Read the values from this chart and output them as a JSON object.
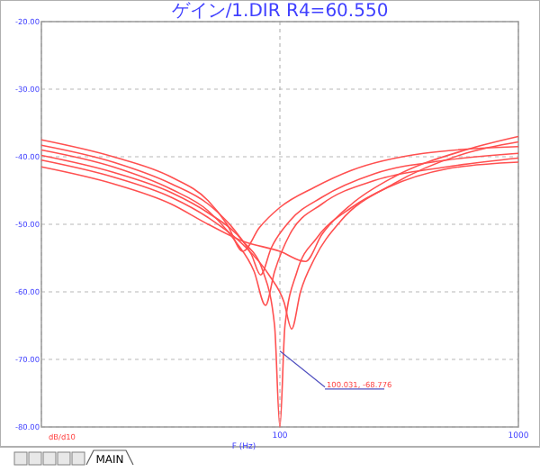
{
  "chart_data": {
    "type": "line",
    "title": "ゲイン/1.DIR R4=60.550",
    "xlabel": "F (Hz)",
    "log": "x",
    "xlim": [
      10,
      1000
    ],
    "xticks": [
      {
        "value": 10,
        "label": null
      },
      100,
      1000
    ],
    "ylim": [
      -80,
      -20
    ],
    "yticks": [
      {
        "value": -80,
        "label": "-80.00"
      },
      {
        "value": -70,
        "label": "-70.00"
      },
      {
        "value": -60,
        "label": "-60.00"
      },
      {
        "value": -50,
        "label": "-50.00"
      },
      {
        "value": -40,
        "label": "-40.00"
      },
      {
        "value": -30,
        "label": "-30.00"
      },
      {
        "value": -20,
        "label": "-20.00"
      }
    ],
    "grid": true,
    "marker": "none",
    "line_style": "solid",
    "series": [
      {
        "color": "#ff5050",
        "x": [
          10,
          20,
          35,
          50,
          60,
          70,
          82,
          100,
          140,
          200,
          400,
          1000
        ],
        "values": [
          -37.5,
          -40,
          -43,
          -46.5,
          -50,
          -54,
          -50.5,
          -47.5,
          -44.5,
          -42,
          -39.5,
          -38.5
        ]
      },
      {
        "color": "#ff5050",
        "x": [
          10,
          20,
          35,
          50,
          65,
          76,
          83,
          92,
          110,
          150,
          250,
          500,
          1000
        ],
        "values": [
          -38.3,
          -40.8,
          -44,
          -47,
          -51,
          -54.5,
          -57.5,
          -53.5,
          -49.5,
          -46,
          -42.5,
          -40.5,
          -39.5
        ]
      },
      {
        "color": "#ff5050",
        "x": [
          10,
          20,
          35,
          50,
          65,
          78,
          87,
          95,
          110,
          150,
          250,
          500,
          1000
        ],
        "values": [
          -39,
          -41.5,
          -44.8,
          -48,
          -52.5,
          -57,
          -62,
          -57,
          -51.5,
          -47,
          -43.5,
          -41.5,
          -40.2
        ]
      },
      {
        "color": "#ff5050",
        "x": [
          10,
          20,
          35,
          50,
          70,
          85,
          95,
          100,
          105,
          118,
          143,
          200,
          285,
          500,
          1000
        ],
        "values": [
          -39.8,
          -42.3,
          -45.3,
          -48.3,
          -52.5,
          -57,
          -65,
          -80,
          -65,
          -57,
          -52,
          -47.5,
          -44.5,
          -41.8,
          -40.8
        ]
      },
      {
        "color": "#ff5050",
        "x": [
          10,
          20,
          35,
          50,
          70,
          90,
          104,
          112,
          122,
          140,
          180,
          300,
          600,
          1000
        ],
        "values": [
          -40.5,
          -43,
          -46,
          -49,
          -53,
          -57.5,
          -61.5,
          -65.5,
          -60,
          -55,
          -49.5,
          -44,
          -39.5,
          -37.8
        ]
      },
      {
        "color": "#ff5050",
        "x": [
          10,
          20,
          35,
          50,
          70,
          100,
          128,
          150,
          200,
          300,
          600,
          1000
        ],
        "values": [
          -41.5,
          -44,
          -47,
          -50,
          -52.5,
          -54,
          -55.5,
          -51.5,
          -47,
          -43,
          -39,
          -37
        ]
      }
    ],
    "annotations": [
      {
        "text": "100.031, -68.776",
        "x": 100.031,
        "y": -68.776
      },
      "dB/d10",
      "MAIN"
    ]
  }
}
